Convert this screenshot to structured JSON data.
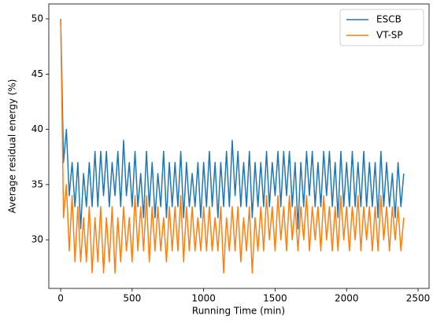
{
  "chart_data": {
    "type": "line",
    "xlabel": "Running Time (min)",
    "ylabel": "Average residual energy (%)",
    "x": [
      0,
      20,
      40,
      60,
      80,
      100,
      120,
      140,
      160,
      180,
      200,
      220,
      240,
      260,
      280,
      300,
      320,
      340,
      360,
      380,
      400,
      420,
      440,
      460,
      480,
      500,
      520,
      540,
      560,
      580,
      600,
      620,
      640,
      660,
      680,
      700,
      720,
      740,
      760,
      780,
      800,
      820,
      840,
      860,
      880,
      900,
      920,
      940,
      960,
      980,
      1000,
      1020,
      1040,
      1060,
      1080,
      1100,
      1120,
      1140,
      1160,
      1180,
      1200,
      1220,
      1240,
      1260,
      1280,
      1300,
      1320,
      1340,
      1360,
      1380,
      1400,
      1420,
      1440,
      1460,
      1480,
      1500,
      1520,
      1540,
      1560,
      1580,
      1600,
      1620,
      1640,
      1660,
      1680,
      1700,
      1720,
      1740,
      1760,
      1780,
      1800,
      1820,
      1840,
      1860,
      1880,
      1900,
      1920,
      1940,
      1960,
      1980,
      2000,
      2020,
      2040,
      2060,
      2080,
      2100,
      2120,
      2140,
      2160,
      2180,
      2200,
      2220,
      2240,
      2260,
      2280,
      2300,
      2320,
      2340,
      2360,
      2380,
      2400
    ],
    "series": [
      {
        "name": "ESCB",
        "color": "#1f77b4",
        "values": [
          50,
          37,
          40,
          34,
          37,
          33,
          37,
          31,
          36,
          33,
          37,
          33,
          38,
          33,
          38,
          34,
          38,
          33,
          37,
          34,
          38,
          33,
          39,
          34,
          37,
          33,
          38,
          33,
          36,
          32,
          38,
          33,
          37,
          32,
          36,
          33,
          38,
          32,
          37,
          33,
          37,
          33,
          38,
          32,
          37,
          33,
          36,
          33,
          37,
          32,
          37,
          33,
          38,
          33,
          37,
          32,
          37,
          33,
          38,
          33,
          39,
          34,
          38,
          33,
          37,
          33,
          38,
          32,
          37,
          33,
          37,
          33,
          38,
          33,
          37,
          34,
          38,
          33,
          38,
          34,
          38,
          33,
          37,
          31,
          37,
          33,
          38,
          34,
          38,
          33,
          37,
          33,
          38,
          34,
          38,
          33,
          37,
          32,
          38,
          33,
          37,
          33,
          38,
          33,
          37,
          33,
          38,
          33,
          37,
          33,
          37,
          32,
          38,
          33,
          37,
          33,
          36,
          32,
          37,
          33,
          36
        ]
      },
      {
        "name": "VT-SP",
        "color": "#ff7f0e",
        "values": [
          50,
          32,
          35,
          29,
          34,
          28,
          33,
          28,
          32,
          28,
          33,
          27,
          32,
          28,
          33,
          27,
          32,
          28,
          33,
          27,
          32,
          28,
          33,
          29,
          32,
          28,
          34,
          29,
          33,
          29,
          34,
          28,
          33,
          29,
          33,
          29,
          32,
          28,
          33,
          29,
          33,
          29,
          34,
          28,
          33,
          29,
          33,
          29,
          32,
          29,
          33,
          29,
          33,
          29,
          32,
          29,
          33,
          27,
          32,
          29,
          33,
          29,
          33,
          28,
          32,
          29,
          33,
          27,
          32,
          29,
          33,
          29,
          34,
          30,
          33,
          29,
          34,
          30,
          33,
          29,
          34,
          30,
          33,
          29,
          33,
          30,
          34,
          29,
          33,
          30,
          33,
          29,
          34,
          30,
          33,
          29,
          33,
          29,
          34,
          30,
          33,
          29,
          33,
          30,
          34,
          29,
          33,
          30,
          33,
          29,
          33,
          29,
          34,
          30,
          33,
          29,
          33,
          30,
          33,
          29,
          32
        ]
      }
    ],
    "xlim": [
      -83,
      2577
    ],
    "ylim": [
      25.6,
      51.35
    ],
    "xticks": [
      0,
      500,
      1000,
      1500,
      2000,
      2500
    ],
    "yticks": [
      30,
      35,
      40,
      45,
      50
    ],
    "legend": "upper right"
  }
}
